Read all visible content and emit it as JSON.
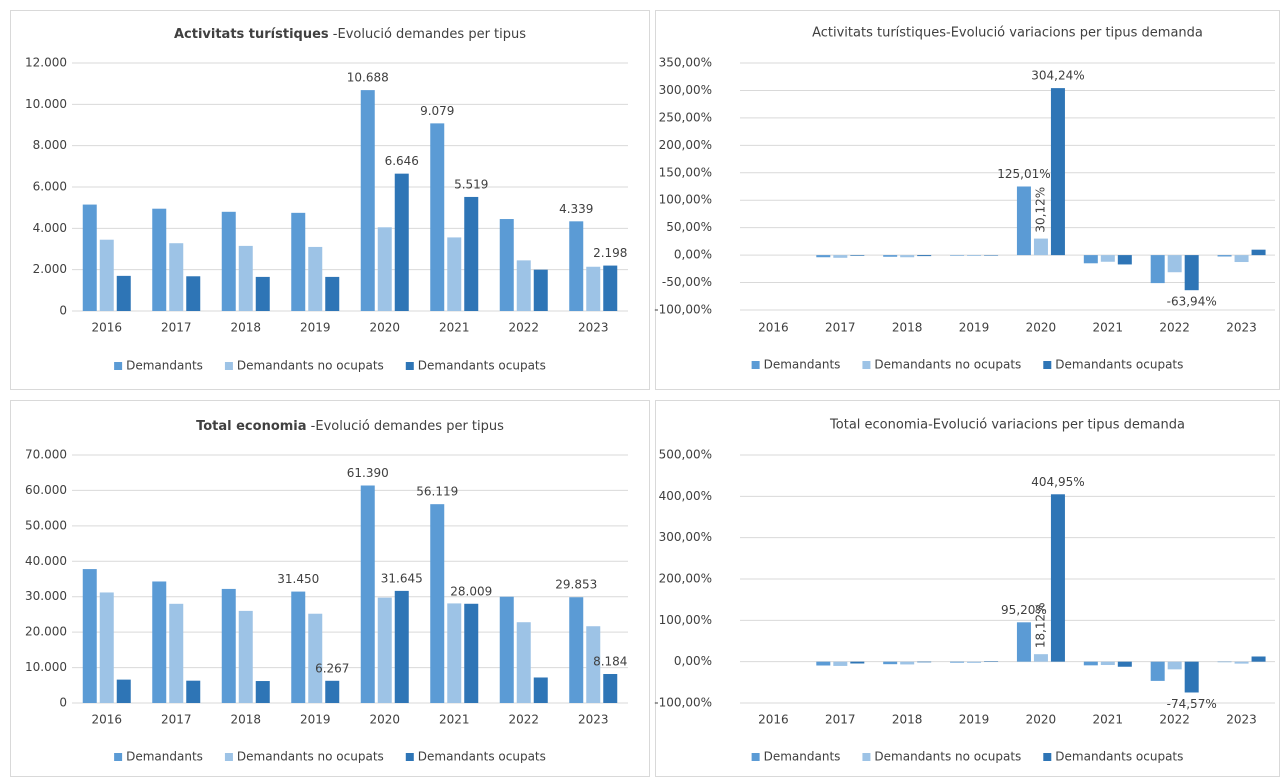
{
  "chart_data": [
    {
      "type": "bar",
      "title": [
        "Activitats turístiques",
        " -Evolució demandes per tipus"
      ],
      "categories": [
        "2016",
        "2017",
        "2018",
        "2019",
        "2020",
        "2021",
        "2022",
        "2023"
      ],
      "ylim": [
        0,
        12000
      ],
      "yticks": [
        0,
        {
          "value": 2000,
          "label": "2.000"
        },
        {
          "value": 4000,
          "label": "4.000"
        },
        {
          "value": 6000,
          "label": "6.000"
        },
        {
          "value": 8000,
          "label": "8.000"
        },
        {
          "value": 10000,
          "label": "10.000"
        },
        {
          "value": 12000,
          "label": "12.000"
        }
      ],
      "grid": true,
      "legend": "bottom",
      "series": [
        {
          "name": "Demandants",
          "color": "#5b9bd5",
          "values": [
            5150,
            4950,
            4800,
            4750,
            10688,
            9079,
            4450,
            4339
          ],
          "value_labels": [
            null,
            null,
            null,
            null,
            "10.688",
            "9.079",
            null,
            "4.339"
          ]
        },
        {
          "name": "Demandants no ocupats",
          "color": "#9dc3e6",
          "values": [
            3450,
            3280,
            3150,
            3100,
            4050,
            3560,
            2450,
            2141
          ]
        },
        {
          "name": "Demandants ocupats",
          "color": "#2e75b6",
          "values": [
            1700,
            1680,
            1650,
            1650,
            6646,
            5519,
            2000,
            2198
          ],
          "value_labels": [
            null,
            null,
            null,
            null,
            "6.646",
            "5.519",
            null,
            "2.198"
          ]
        }
      ]
    },
    {
      "type": "bar",
      "title": "Activitats turístiques-Evolució variacions per tipus demanda",
      "categories": [
        "2016",
        "2017",
        "2018",
        "2019",
        "2020",
        "2021",
        "2022",
        "2023"
      ],
      "ylim": [
        -100,
        350
      ],
      "yticks": [
        {
          "value": -100,
          "label": "-100,00%"
        },
        {
          "value": -50,
          "label": "-50,00%"
        },
        {
          "value": 0,
          "label": "0,00%"
        },
        {
          "value": 50,
          "label": "50,00%"
        },
        {
          "value": 100,
          "label": "100,00%"
        },
        {
          "value": 150,
          "label": "150,00%"
        },
        {
          "value": 200,
          "label": "200,00%"
        },
        {
          "value": 250,
          "label": "250,00%"
        },
        {
          "value": 300,
          "label": "300,00%"
        },
        {
          "value": 350,
          "label": "350,00%"
        }
      ],
      "grid": true,
      "legend": "bottom",
      "series": [
        {
          "name": "Demandants",
          "color": "#5b9bd5",
          "values": [
            null,
            -3.9,
            -3.0,
            -1.0,
            125.01,
            -14.9,
            -51.0,
            -2.5
          ],
          "value_labels": [
            null,
            null,
            null,
            null,
            "125,01%",
            null,
            null,
            null
          ]
        },
        {
          "name": "Demandants no ocupats",
          "color": "#9dc3e6",
          "values": [
            null,
            -4.9,
            -3.9,
            -1.6,
            30.12,
            -12.1,
            -31.2,
            -12.6
          ],
          "value_labels": [
            null,
            null,
            null,
            null,
            "30,12%",
            null,
            null,
            null
          ]
        },
        {
          "name": "Demandants ocupats",
          "color": "#2e75b6",
          "values": [
            null,
            -1.2,
            -1.8,
            0,
            304.24,
            -17.0,
            -63.94,
            9.9
          ],
          "value_labels": [
            null,
            null,
            null,
            null,
            "304,24%",
            null,
            "-63,94%",
            null
          ]
        }
      ]
    },
    {
      "type": "bar",
      "title": [
        "Total economia",
        " -Evolució demandes per tipus"
      ],
      "categories": [
        "2016",
        "2017",
        "2018",
        "2019",
        "2020",
        "2021",
        "2022",
        "2023"
      ],
      "ylim": [
        0,
        70000
      ],
      "yticks": [
        0,
        {
          "value": 10000,
          "label": "10.000"
        },
        {
          "value": 20000,
          "label": "20.000"
        },
        {
          "value": 30000,
          "label": "30.000"
        },
        {
          "value": 40000,
          "label": "40.000"
        },
        {
          "value": 50000,
          "label": "50.000"
        },
        {
          "value": 60000,
          "label": "60.000"
        },
        {
          "value": 70000,
          "label": "70.000"
        }
      ],
      "grid": true,
      "legend": "bottom",
      "series": [
        {
          "name": "Demandants",
          "color": "#5b9bd5",
          "values": [
            37800,
            34300,
            32200,
            31450,
            61390,
            56119,
            30000,
            29853
          ],
          "value_labels": [
            null,
            null,
            null,
            "31.450",
            "61.390",
            "56.119",
            null,
            "29.853"
          ]
        },
        {
          "name": "Demandants no ocupats",
          "color": "#9dc3e6",
          "values": [
            31200,
            28000,
            26000,
            25200,
            29745,
            28110,
            22800,
            21669
          ]
        },
        {
          "name": "Demandants ocupats",
          "color": "#2e75b6",
          "values": [
            6600,
            6300,
            6200,
            6267,
            31645,
            28009,
            7200,
            8184
          ],
          "value_labels": [
            null,
            null,
            null,
            "6.267",
            "31.645",
            "28.009",
            null,
            "8.184"
          ]
        }
      ]
    },
    {
      "type": "bar",
      "title": "Total economia-Evolució variacions per tipus demanda",
      "categories": [
        "2016",
        "2017",
        "2018",
        "2019",
        "2020",
        "2021",
        "2022",
        "2023"
      ],
      "ylim": [
        -100,
        500
      ],
      "yticks": [
        {
          "value": -100,
          "label": "-100,00%"
        },
        {
          "value": 0,
          "label": "0,00%"
        },
        {
          "value": 100,
          "label": "100,00%"
        },
        {
          "value": 200,
          "label": "200,00%"
        },
        {
          "value": 300,
          "label": "300,00%"
        },
        {
          "value": 400,
          "label": "400,00%"
        },
        {
          "value": 500,
          "label": "500,00%"
        }
      ],
      "grid": true,
      "legend": "bottom",
      "series": [
        {
          "name": "Demandants",
          "color": "#5b9bd5",
          "values": [
            null,
            -9.3,
            -6.1,
            -2.3,
            95.2,
            -8.9,
            -46.5,
            -0.5
          ],
          "value_labels": [
            null,
            null,
            null,
            null,
            "95,20%",
            null,
            null,
            null
          ]
        },
        {
          "name": "Demandants no ocupats",
          "color": "#9dc3e6",
          "values": [
            null,
            -10.3,
            -6.7,
            -2.9,
            18.12,
            -8.1,
            -18.6,
            -4.7
          ],
          "value_labels": [
            null,
            null,
            null,
            null,
            "18,12%",
            null,
            null,
            null
          ]
        },
        {
          "name": "Demandants ocupats",
          "color": "#2e75b6",
          "values": [
            null,
            -4.4,
            -1.6,
            1.0,
            404.95,
            -12.3,
            -74.57,
            12.5
          ],
          "value_labels": [
            null,
            null,
            null,
            null,
            "404,95%",
            null,
            "-74,57%",
            null
          ]
        }
      ]
    }
  ]
}
